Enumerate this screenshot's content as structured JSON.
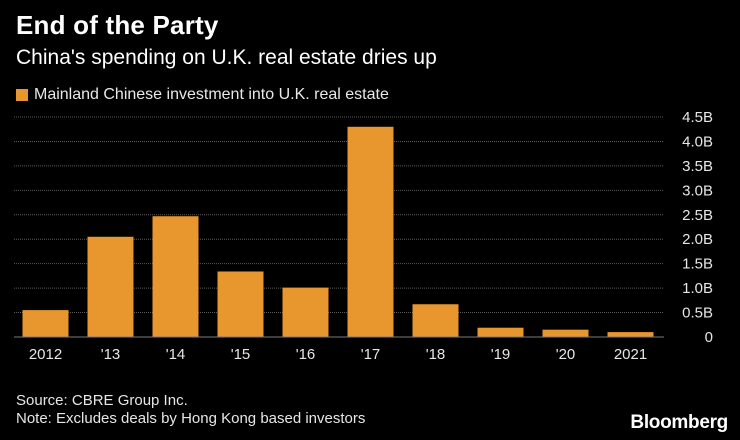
{
  "chart_data": {
    "type": "bar",
    "title": "End of the Party",
    "subtitle": "China's spending on U.K. real estate dries up",
    "legend": [
      "Mainland Chinese investment into U.K. real estate"
    ],
    "categories": [
      "2012",
      "'13",
      "'14",
      "'15",
      "'16",
      "'17",
      "'18",
      "'19",
      "'20",
      "2021"
    ],
    "series": [
      {
        "name": "Mainland Chinese investment into U.K. real estate",
        "values": [
          0.55,
          2.05,
          2.47,
          1.34,
          1.01,
          4.3,
          0.67,
          0.19,
          0.15,
          0.1
        ]
      }
    ],
    "ylim": [
      0,
      4.5
    ],
    "yticks": [
      {
        "value": 0,
        "label": "0"
      },
      {
        "value": 0.5,
        "label": "0.5B"
      },
      {
        "value": 1.0,
        "label": "1.0B"
      },
      {
        "value": 1.5,
        "label": "1.5B"
      },
      {
        "value": 2.0,
        "label": "2.0B"
      },
      {
        "value": 2.5,
        "label": "2.5B"
      },
      {
        "value": 3.0,
        "label": "3.0B"
      },
      {
        "value": 3.5,
        "label": "3.5B"
      },
      {
        "value": 4.0,
        "label": "4.0B"
      },
      {
        "value": 4.5,
        "label": "4.5B"
      }
    ],
    "grid": true,
    "xlabel": "",
    "ylabel": ""
  },
  "colors": {
    "bar": "#e8962e",
    "grid": "#5a5a5a",
    "background": "#000000"
  },
  "footer": {
    "source": "Source: CBRE Group Inc.",
    "note": "Note: Excludes deals by Hong Kong based investors",
    "brand": "Bloomberg"
  }
}
